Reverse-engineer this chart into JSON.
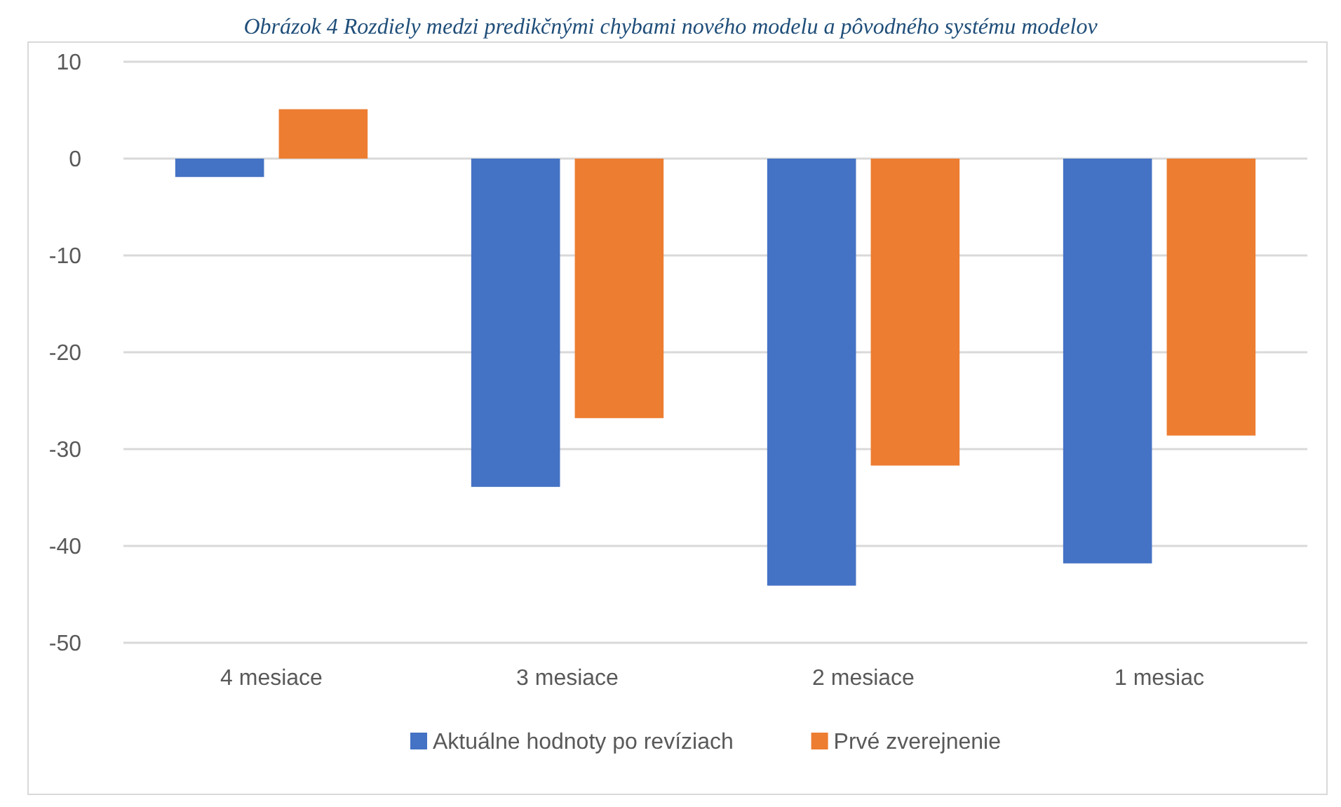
{
  "chart_data": {
    "type": "bar",
    "title": "Obrázok 4 Rozdiely medzi predikčnými chybami nového modelu a pôvodného systému modelov",
    "categories": [
      "4 mesiace",
      "3 mesiace",
      "2 mesiace",
      "1 mesiac"
    ],
    "series": [
      {
        "name": "Aktuálne hodnoty po revíziach",
        "color": "#4472c4",
        "values": [
          -1.9,
          -33.9,
          -44.1,
          -41.8
        ]
      },
      {
        "name": "Prvé zverejnenie",
        "color": "#ed7d31",
        "values": [
          5.1,
          -26.8,
          -31.7,
          -28.6
        ]
      }
    ],
    "ylim": [
      -50,
      10
    ],
    "yticks": [
      -50,
      -40,
      -30,
      -20,
      -10,
      0,
      10
    ],
    "grid": "y",
    "legend": "bottom"
  }
}
